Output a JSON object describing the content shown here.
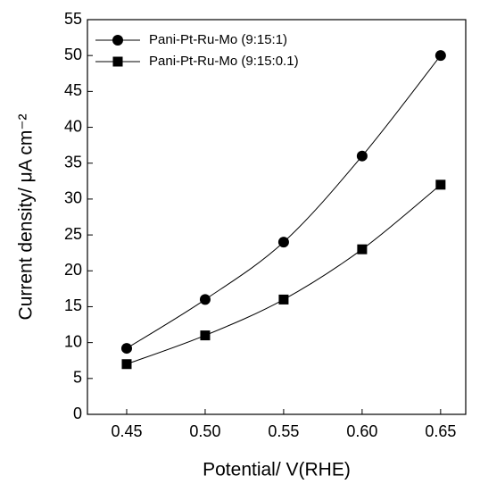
{
  "chart_data": {
    "type": "line",
    "x_label": "Potential/ V(RHE)",
    "y_label": "Current density/ μA cm⁻²",
    "x": [
      0.45,
      0.5,
      0.55,
      0.6,
      0.65
    ],
    "series": [
      {
        "name": "Pani-Pt-Ru-Mo (9:15:1)",
        "color": "#000000",
        "marker": "circle",
        "values": [
          9.2,
          16,
          24,
          36,
          50
        ]
      },
      {
        "name": "Pani-Pt-Ru-Mo (9:15:0.1)",
        "color": "#000000",
        "marker": "square",
        "values": [
          7,
          11,
          16,
          23,
          32
        ]
      }
    ],
    "xlim": [
      0.425,
      0.666
    ],
    "ylim": [
      0,
      55
    ],
    "xticks": [
      0.45,
      {
        "value": 0.5,
        "label": "0.50"
      },
      0.55,
      {
        "value": 0.6,
        "label": "0.60"
      },
      0.65
    ],
    "yticks": [
      0,
      5,
      10,
      15,
      20,
      25,
      30,
      35,
      40,
      45,
      50,
      55
    ],
    "smooth": true,
    "legend": "upper left"
  }
}
